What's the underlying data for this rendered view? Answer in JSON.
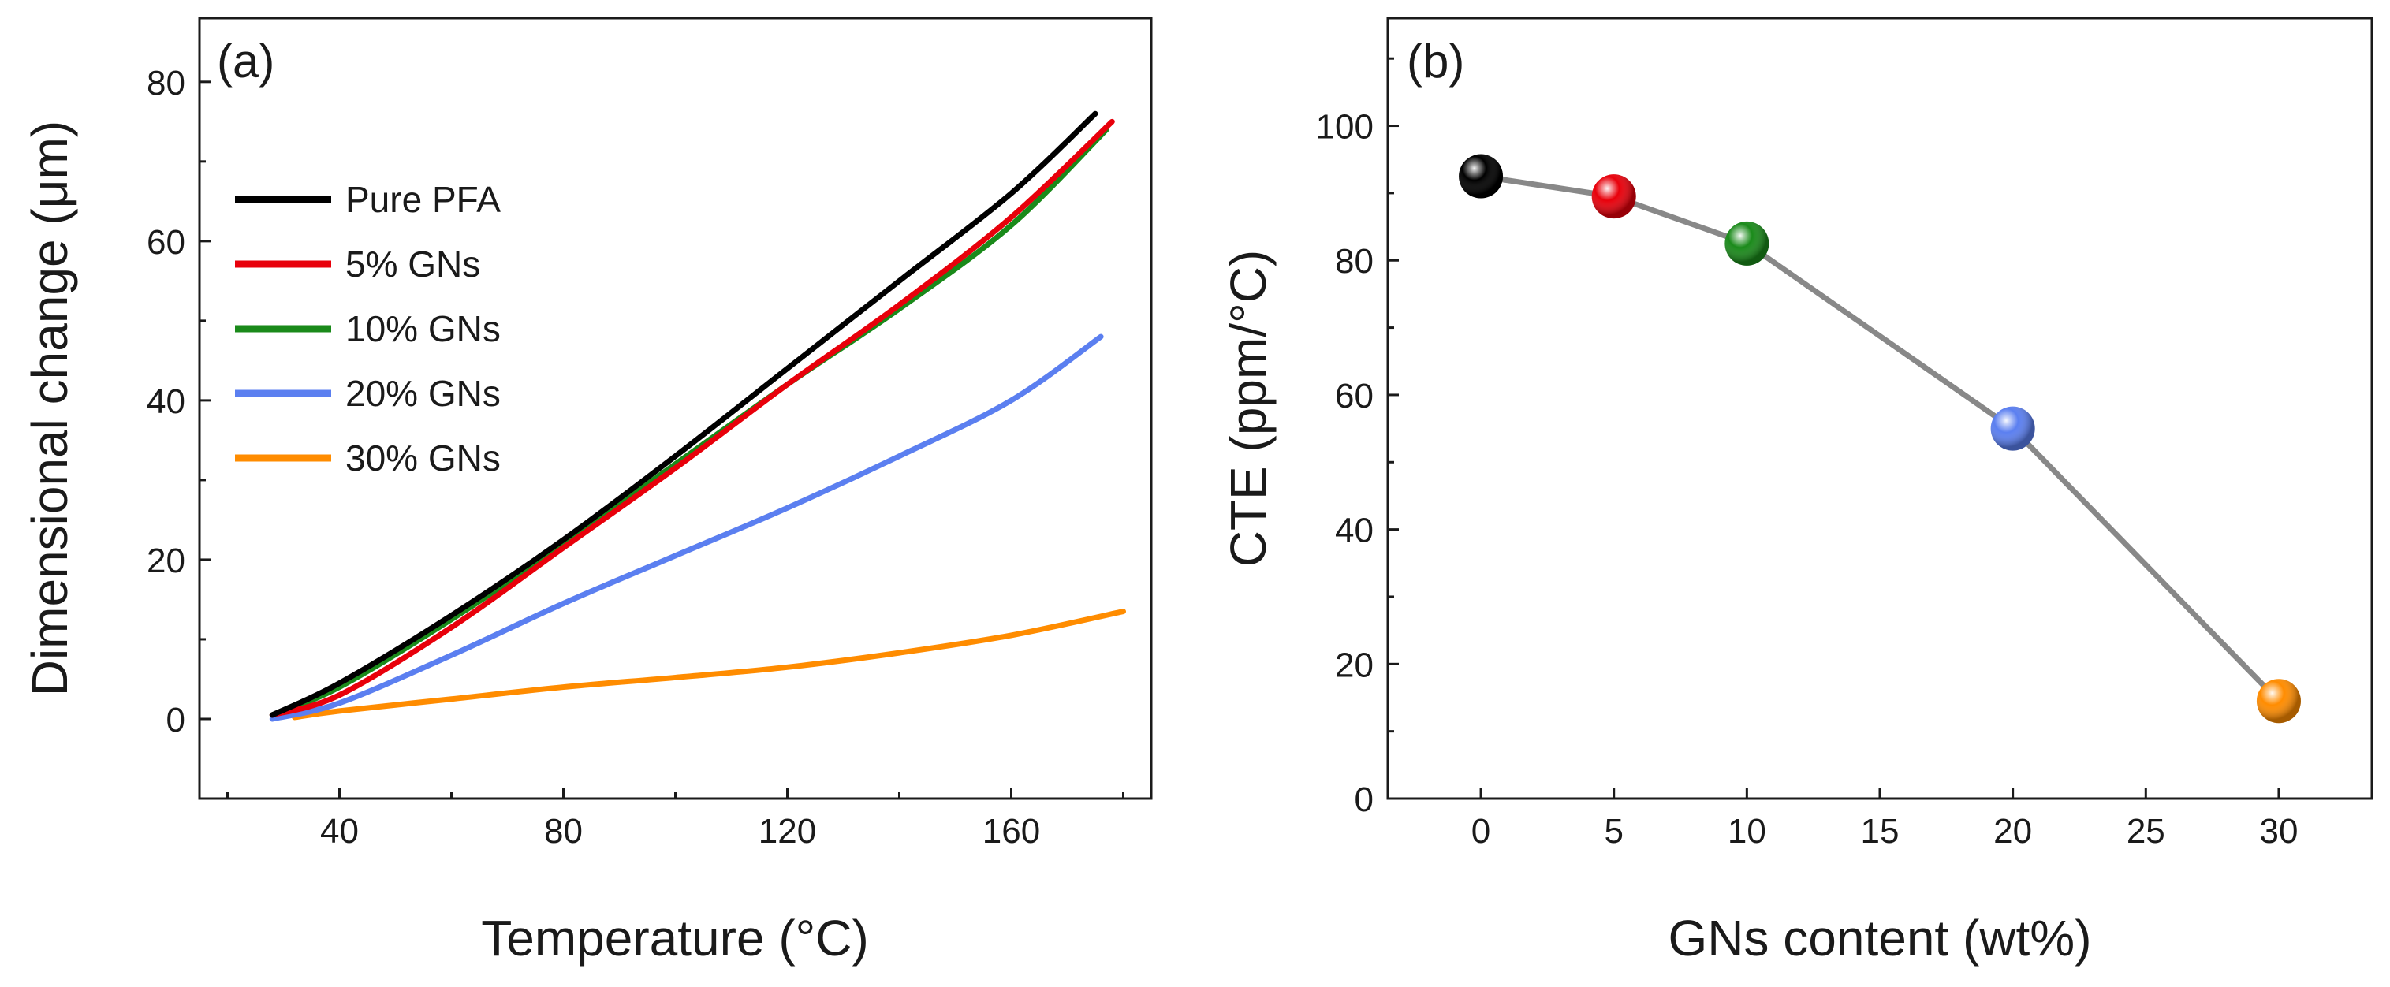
{
  "chart_data": [
    {
      "panel": "(a)",
      "type": "line",
      "xlabel": "Temperature (°C)",
      "ylabel": "Dimensional change (μm)",
      "xlim": [
        15,
        185
      ],
      "ylim": [
        -10,
        88
      ],
      "xticks": [
        40,
        80,
        120,
        160
      ],
      "yticks": [
        0,
        20,
        40,
        60,
        80
      ],
      "legend_position": "upper-left",
      "series": [
        {
          "name": "Pure PFA",
          "color": "#000000",
          "x": [
            28,
            40,
            60,
            80,
            100,
            120,
            140,
            160,
            175
          ],
          "y": [
            0.5,
            4.5,
            13,
            22.5,
            33,
            44,
            55,
            66,
            76
          ]
        },
        {
          "name": "5% GNs",
          "color": "#e8000b",
          "x": [
            28,
            40,
            60,
            80,
            100,
            120,
            140,
            160,
            178
          ],
          "y": [
            0.5,
            3,
            11.5,
            21.5,
            31.5,
            42,
            52,
            63,
            75
          ]
        },
        {
          "name": "10% GNs",
          "color": "#1a8a1a",
          "x": [
            28,
            40,
            60,
            80,
            100,
            120,
            140,
            160,
            177
          ],
          "y": [
            0.5,
            4,
            12.5,
            22,
            32,
            42,
            51.5,
            62,
            74
          ]
        },
        {
          "name": "20% GNs",
          "color": "#5b7ff0",
          "x": [
            28,
            40,
            60,
            80,
            100,
            120,
            140,
            160,
            176
          ],
          "y": [
            0,
            2,
            8,
            14.5,
            20.5,
            26.5,
            33,
            40,
            48
          ]
        },
        {
          "name": "30% GNs",
          "color": "#ff8c00",
          "x": [
            32,
            40,
            60,
            80,
            100,
            120,
            140,
            160,
            180
          ],
          "y": [
            0.2,
            1,
            2.5,
            4,
            5.2,
            6.5,
            8.3,
            10.5,
            13.5
          ]
        }
      ]
    },
    {
      "panel": "(b)",
      "type": "scatter",
      "xlabel": "GNs content (wt%)",
      "ylabel": "CTE (ppm/°C)",
      "xlim": [
        -3.5,
        33.5
      ],
      "ylim": [
        0,
        116
      ],
      "xticks": [
        0,
        5,
        10,
        15,
        20,
        25,
        30
      ],
      "yticks": [
        0,
        20,
        40,
        60,
        80,
        100
      ],
      "line_color": "#888888",
      "points": [
        {
          "x": 0,
          "y": 92.5,
          "color": "#000000",
          "name": "Pure PFA"
        },
        {
          "x": 5,
          "y": 89.5,
          "color": "#e8000b",
          "name": "5% GNs"
        },
        {
          "x": 10,
          "y": 82.5,
          "color": "#1a8a1a",
          "name": "10% GNs"
        },
        {
          "x": 20,
          "y": 55,
          "color": "#5b7ff0",
          "name": "20% GNs"
        },
        {
          "x": 30,
          "y": 14.5,
          "color": "#ff8c00",
          "name": "30% GNs"
        }
      ]
    }
  ]
}
